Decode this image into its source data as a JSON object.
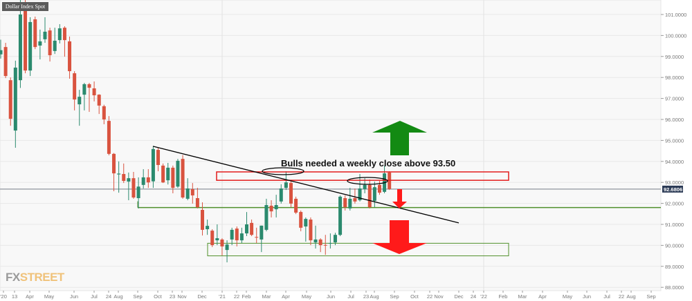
{
  "chart_data": {
    "type": "candlestick",
    "title": "Dollar Index Spot",
    "annotation_text": "Bulls needed a weekly close above 93.50",
    "logo": {
      "fx": "FX",
      "street": "STREET"
    },
    "ylim": [
      88,
      101
    ],
    "y_ticks": [
      "101.0000",
      "100.0000",
      "99.0000",
      "98.0000",
      "97.0000",
      "96.0000",
      "95.0000",
      "94.0000",
      "93.0000",
      "92.0000",
      "91.0000",
      "90.0000",
      "89.0000",
      "88.0000"
    ],
    "x_ticks": [
      "'20",
      "13",
      "Apr",
      "May",
      "Jun",
      "Jul",
      "24",
      "Aug",
      "Sep",
      "Oct",
      "23",
      "Nov",
      "Dec",
      "'21",
      "22",
      "Feb",
      "Mar",
      "Apr",
      "May",
      "Jun",
      "Jul",
      "23",
      "Aug",
      "Sep",
      "Oct",
      "22",
      "Nov",
      "Dec",
      "24",
      "'22",
      "Feb",
      "Mar",
      "Apr",
      "May",
      "Jun",
      "Jul",
      "22",
      "Aug",
      "Sep"
    ],
    "current_price": "92.6806",
    "grid": true,
    "colors": {
      "up": "#2b8a6e",
      "down": "#d9533f",
      "resistance": "#e31b1b",
      "support": "#4f8f2a",
      "trendline": "#000000",
      "up_arrow": "#138a13",
      "down_arrow": "#ff1a1a",
      "price_label": "#2b3a55"
    },
    "levels": {
      "resistance_zone": [
        93.1,
        93.5
      ],
      "support_line": 91.8,
      "support_zone": [
        89.5,
        90.1
      ],
      "trendline_prices": [
        94.72,
        91.07
      ]
    },
    "candles_ohlc": [
      [
        99.1,
        99.8,
        98.9,
        99.3
      ],
      [
        99.45,
        99.65,
        97.97,
        98.07
      ],
      [
        97.87,
        98.0,
        95.7,
        96.03
      ],
      [
        95.47,
        98.8,
        94.65,
        98.47
      ],
      [
        97.87,
        101.7,
        97.5,
        101.0
      ],
      [
        101.5,
        101.9,
        98.2,
        98.33
      ],
      [
        98.33,
        100.87,
        98.07,
        100.64
      ],
      [
        100.77,
        100.9,
        99.35,
        99.45
      ],
      [
        99.52,
        100.28,
        98.86,
        99.72
      ],
      [
        99.82,
        100.87,
        99.65,
        100.18
      ],
      [
        100.24,
        100.37,
        98.76,
        99.06
      ],
      [
        99.26,
        100.37,
        99.12,
        99.75
      ],
      [
        99.78,
        100.54,
        99.62,
        100.34
      ],
      [
        100.37,
        100.44,
        98.99,
        99.78
      ],
      [
        99.72,
        99.95,
        97.94,
        98.3
      ],
      [
        98.2,
        98.3,
        96.43,
        96.95
      ],
      [
        96.72,
        97.41,
        95.7,
        97.08
      ],
      [
        97.18,
        97.74,
        96.43,
        97.68
      ],
      [
        97.68,
        97.74,
        96.36,
        97.51
      ],
      [
        97.48,
        97.81,
        96.86,
        97.15
      ],
      [
        97.18,
        97.2,
        96.26,
        96.66
      ],
      [
        96.63,
        96.7,
        95.77,
        96.0
      ],
      [
        95.93,
        96.16,
        94.29,
        94.36
      ],
      [
        94.36,
        94.4,
        92.58,
        93.43
      ],
      [
        93.38,
        94.0,
        92.51,
        93.42
      ],
      [
        93.4,
        93.9,
        92.97,
        93.07
      ],
      [
        93.04,
        93.47,
        92.15,
        93.2
      ],
      [
        93.2,
        93.5,
        92.22,
        92.28
      ],
      [
        92.25,
        93.24,
        91.76,
        92.8
      ],
      [
        92.88,
        93.63,
        92.71,
        93.24
      ],
      [
        93.24,
        93.63,
        92.74,
        93.0
      ],
      [
        93.05,
        94.72,
        92.74,
        94.59
      ],
      [
        94.55,
        94.65,
        93.53,
        93.83
      ],
      [
        93.8,
        93.9,
        92.97,
        93.0
      ],
      [
        93.1,
        93.93,
        92.9,
        93.7
      ],
      [
        93.7,
        93.8,
        92.48,
        92.74
      ],
      [
        92.8,
        94.12,
        92.74,
        94.03
      ],
      [
        94.12,
        94.3,
        92.22,
        92.28
      ],
      [
        92.22,
        93.2,
        92.15,
        92.71
      ],
      [
        92.68,
        92.97,
        91.99,
        92.38
      ],
      [
        92.25,
        92.74,
        91.76,
        91.82
      ],
      [
        91.69,
        92.05,
        90.47,
        90.74
      ],
      [
        90.77,
        91.23,
        90.5,
        90.93
      ],
      [
        90.7,
        90.77,
        89.92,
        90.01
      ],
      [
        90.24,
        91.0,
        90.01,
        90.34
      ],
      [
        90.28,
        90.34,
        89.52,
        89.95
      ],
      [
        89.78,
        90.24,
        89.19,
        90.04
      ],
      [
        90.28,
        90.84,
        90.01,
        90.74
      ],
      [
        90.8,
        90.9,
        89.95,
        90.24
      ],
      [
        90.24,
        90.84,
        90.11,
        90.57
      ],
      [
        90.57,
        91.59,
        90.44,
        91.0
      ],
      [
        91.07,
        91.23,
        90.44,
        90.5
      ],
      [
        90.4,
        90.84,
        90.11,
        90.38
      ],
      [
        90.28,
        90.94,
        89.68,
        90.94
      ],
      [
        90.74,
        92.22,
        90.67,
        91.92
      ],
      [
        91.89,
        92.15,
        91.33,
        91.62
      ],
      [
        91.72,
        92.41,
        91.33,
        91.92
      ],
      [
        92.09,
        92.91,
        91.99,
        92.71
      ],
      [
        92.74,
        93.53,
        92.64,
        93.0
      ],
      [
        92.97,
        93.07,
        91.82,
        91.99
      ],
      [
        92.22,
        92.32,
        91.49,
        91.56
      ],
      [
        91.59,
        91.66,
        90.67,
        90.84
      ],
      [
        90.9,
        91.33,
        90.18,
        91.26
      ],
      [
        91.23,
        91.33,
        90.01,
        90.24
      ],
      [
        90.14,
        90.94,
        89.85,
        90.28
      ],
      [
        90.28,
        90.34,
        89.68,
        90.01
      ],
      [
        90.02,
        90.5,
        89.55,
        90.0
      ],
      [
        90.09,
        90.57,
        89.85,
        90.11
      ],
      [
        90.14,
        90.6,
        90.01,
        90.5
      ],
      [
        90.5,
        92.38,
        90.44,
        92.32
      ],
      [
        92.25,
        92.38,
        91.66,
        91.82
      ],
      [
        91.76,
        92.74,
        91.66,
        92.22
      ],
      [
        92.25,
        92.71,
        91.99,
        92.09
      ],
      [
        92.15,
        93.4,
        92.09,
        92.71
      ],
      [
        92.68,
        93.2,
        92.48,
        92.88
      ],
      [
        92.88,
        93.14,
        91.76,
        91.82
      ],
      [
        92.12,
        93.04,
        91.82,
        92.77
      ],
      [
        92.88,
        93.07,
        92.41,
        92.51
      ],
      [
        92.55,
        93.8,
        92.48,
        93.43
      ],
      [
        93.47,
        93.53,
        92.64,
        92.68
      ]
    ]
  }
}
